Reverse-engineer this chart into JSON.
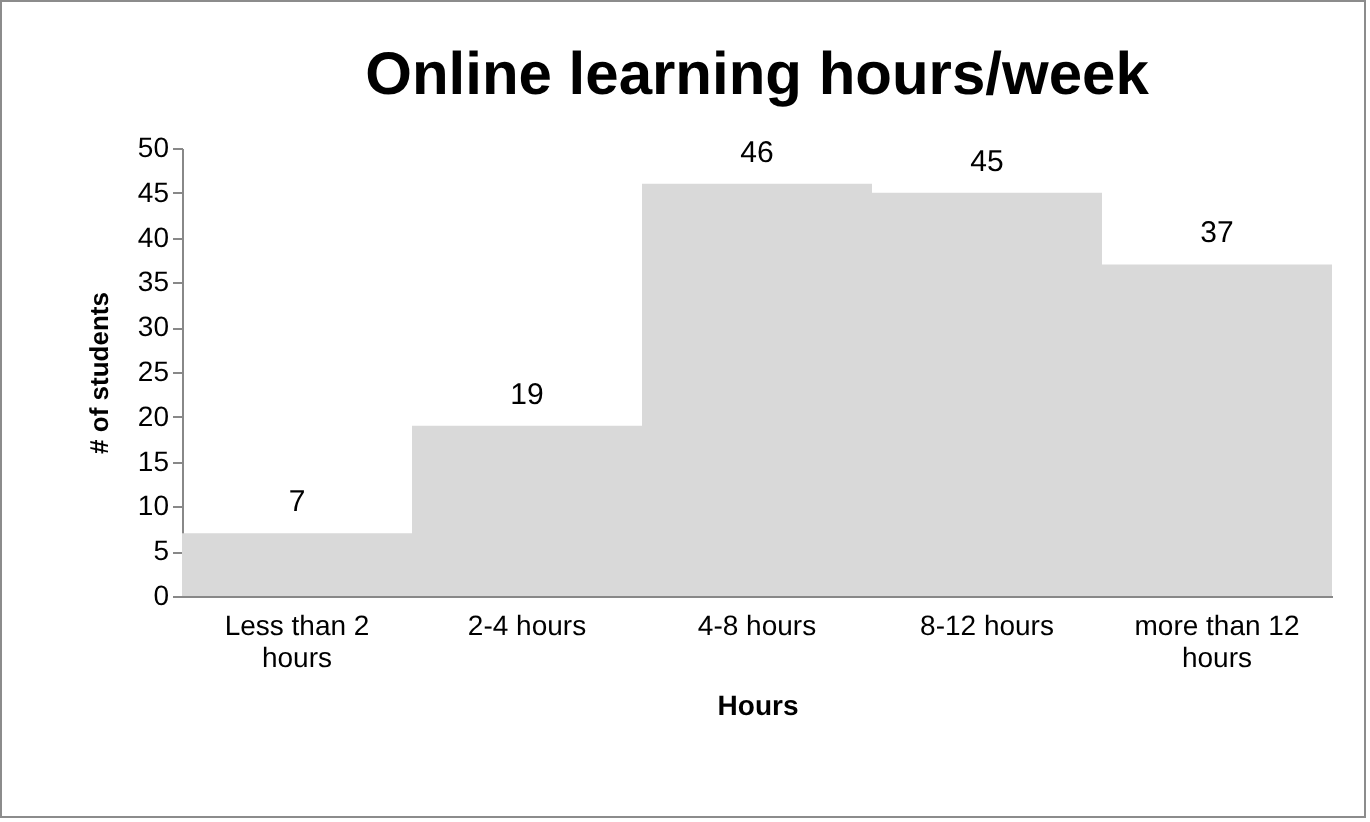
{
  "chart_data": {
    "type": "bar",
    "title": "Online learning hours/week",
    "xlabel": "Hours",
    "ylabel": "# of students",
    "categories": [
      "Less than 2 hours",
      "2-4 hours",
      "4-8 hours",
      "8-12 hours",
      "more than 12 hours"
    ],
    "values": [
      7,
      19,
      46,
      45,
      37
    ],
    "color": "#d9d9d9",
    "ylim": [
      0,
      50
    ],
    "yticks": [
      0,
      5,
      10,
      15,
      20,
      25,
      30,
      35,
      40,
      45,
      50
    ],
    "grid": false,
    "data_labels": true
  }
}
